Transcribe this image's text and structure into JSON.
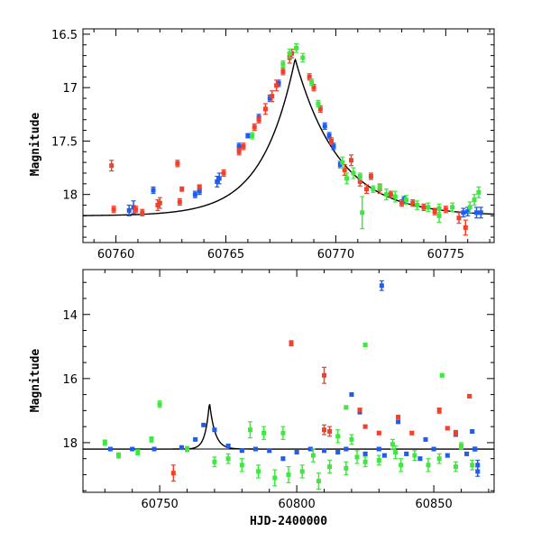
{
  "colors": {
    "blue": "#1f5cf0",
    "red": "#f2402a",
    "green": "#3ee83e",
    "axis": "#000000"
  },
  "chart_data": [
    {
      "type": "scatter",
      "title": "",
      "xlabel": "",
      "ylabel": "Magnitude",
      "xlim": [
        60758.5,
        60777.2
      ],
      "ylim": [
        18.45,
        16.45
      ],
      "y_inverted": true,
      "x_major_ticks": [
        60760,
        60765,
        60770,
        60775
      ],
      "x_tick_labels": [
        "60760",
        "60765",
        "60770",
        "60775"
      ],
      "y_major_ticks": [
        16.5,
        17,
        17.5,
        18
      ],
      "y_tick_labels": [
        "16.5",
        "17",
        "17.5",
        "18"
      ],
      "grid": false,
      "model_curve": {
        "t0": 60768.15,
        "peak": 16.73,
        "base": 18.2,
        "tau_rise": 1.5,
        "tau_fall": 2.0,
        "shape": "exponential-cusp"
      },
      "series": [
        {
          "color": "blue",
          "points": [
            [
              60760.6,
              18.15,
              0.05
            ],
            [
              60760.8,
              18.12,
              0.06
            ],
            [
              60761.7,
              17.96,
              0.03
            ],
            [
              60763.6,
              18.0,
              0.03
            ],
            [
              60763.8,
              17.97,
              0.03
            ],
            [
              60764.6,
              17.88,
              0.05
            ],
            [
              60764.7,
              17.85,
              0.05
            ],
            [
              60765.6,
              17.55,
              0.03
            ],
            [
              60766.0,
              17.45,
              0.02
            ],
            [
              60766.5,
              17.28,
              0.03
            ],
            [
              60767.0,
              17.1,
              0.03
            ],
            [
              60767.4,
              16.96,
              0.03
            ],
            [
              60769.5,
              17.36,
              0.03
            ],
            [
              60769.7,
              17.45,
              0.03
            ],
            [
              60769.9,
              17.55,
              0.03
            ],
            [
              60770.2,
              17.72,
              0.03
            ],
            [
              60773.1,
              18.05,
              0.03
            ],
            [
              60775.8,
              18.17,
              0.04
            ],
            [
              60776.0,
              18.16,
              0.04
            ],
            [
              60776.4,
              18.17,
              0.05
            ],
            [
              60776.6,
              18.17,
              0.05
            ]
          ]
        },
        {
          "color": "red",
          "points": [
            [
              60759.8,
              17.73,
              0.05
            ],
            [
              60759.9,
              18.14,
              0.03
            ],
            [
              60760.9,
              18.14,
              0.03
            ],
            [
              60761.2,
              18.17,
              0.03
            ],
            [
              60761.9,
              18.1,
              0.05
            ],
            [
              60762.0,
              18.08,
              0.05
            ],
            [
              60762.8,
              17.71,
              0.03
            ],
            [
              60762.9,
              18.07,
              0.03
            ],
            [
              60763.0,
              17.95,
              0.02
            ],
            [
              60763.8,
              17.93,
              0.02
            ],
            [
              60764.9,
              17.8,
              0.03
            ],
            [
              60765.6,
              17.6,
              0.03
            ],
            [
              60765.8,
              17.55,
              0.03
            ],
            [
              60766.3,
              17.37,
              0.03
            ],
            [
              60766.5,
              17.3,
              0.03
            ],
            [
              60766.8,
              17.2,
              0.05
            ],
            [
              60767.1,
              17.08,
              0.05
            ],
            [
              60767.3,
              16.98,
              0.05
            ],
            [
              60767.6,
              16.85,
              0.03
            ],
            [
              60767.9,
              16.72,
              0.05
            ],
            [
              60768.0,
              16.68,
              0.04
            ],
            [
              60768.8,
              16.9,
              0.03
            ],
            [
              60769.0,
              17.0,
              0.03
            ],
            [
              60769.3,
              17.2,
              0.03
            ],
            [
              60769.8,
              17.5,
              0.03
            ],
            [
              60770.4,
              17.77,
              0.05
            ],
            [
              60770.7,
              17.68,
              0.05
            ],
            [
              60771.1,
              17.88,
              0.04
            ],
            [
              60771.4,
              17.95,
              0.04
            ],
            [
              60771.6,
              17.83,
              0.03
            ],
            [
              60772.0,
              17.95,
              0.04
            ],
            [
              60772.5,
              18.0,
              0.03
            ],
            [
              60773.0,
              18.08,
              0.03
            ],
            [
              60773.5,
              18.08,
              0.03
            ],
            [
              60774.0,
              18.12,
              0.03
            ],
            [
              60774.5,
              18.16,
              0.03
            ],
            [
              60775.0,
              18.14,
              0.03
            ],
            [
              60775.6,
              18.22,
              0.05
            ],
            [
              60775.9,
              18.31,
              0.07
            ]
          ]
        },
        {
          "color": "green",
          "points": [
            [
              60766.2,
              17.45,
              0.03
            ],
            [
              60767.6,
              16.78,
              0.03
            ],
            [
              60767.9,
              16.68,
              0.04
            ],
            [
              60768.2,
              16.63,
              0.04
            ],
            [
              60768.5,
              16.72,
              0.04
            ],
            [
              60768.9,
              16.95,
              0.03
            ],
            [
              60769.2,
              17.15,
              0.03
            ],
            [
              60770.3,
              17.7,
              0.05
            ],
            [
              60770.5,
              17.85,
              0.05
            ],
            [
              60770.8,
              17.8,
              0.05
            ],
            [
              60771.1,
              17.83,
              0.03
            ],
            [
              60771.7,
              17.95,
              0.03
            ],
            [
              60772.0,
              17.93,
              0.03
            ],
            [
              60772.3,
              18.0,
              0.05
            ],
            [
              60772.7,
              18.02,
              0.05
            ],
            [
              60773.2,
              18.05,
              0.04
            ],
            [
              60773.7,
              18.1,
              0.04
            ],
            [
              60774.2,
              18.12,
              0.04
            ],
            [
              60774.7,
              18.13,
              0.04
            ],
            [
              60775.3,
              18.12,
              0.04
            ],
            [
              60776.1,
              18.12,
              0.05
            ],
            [
              60776.3,
              18.05,
              0.05
            ],
            [
              60776.5,
              17.98,
              0.05
            ],
            [
              60771.2,
              18.17,
              0.15
            ],
            [
              60774.7,
              18.2,
              0.06
            ]
          ]
        }
      ]
    },
    {
      "type": "scatter",
      "title": "",
      "xlabel": "HJD-2400000",
      "ylabel": "Magnitude",
      "xlim": [
        60722,
        60872
      ],
      "ylim": [
        19.55,
        12.6
      ],
      "y_inverted": true,
      "x_major_ticks": [
        60750,
        60800,
        60850
      ],
      "x_tick_labels": [
        "60750",
        "60800",
        "60850"
      ],
      "y_major_ticks": [
        14,
        16,
        18
      ],
      "y_tick_labels": [
        "14",
        "16",
        "18"
      ],
      "grid": false,
      "baseline": 18.2,
      "model_curve": {
        "t0": 60768.15,
        "peak": 16.73,
        "base": 18.2,
        "tau_rise": 1.5,
        "tau_fall": 2.0,
        "shape": "exponential-cusp"
      },
      "series": [
        {
          "color": "blue",
          "points": [
            [
              60831,
              13.1,
              0.15
            ],
            [
              60820,
              16.5,
              0.05
            ],
            [
              60823,
              17.05,
              0.05
            ],
            [
              60837,
              17.35,
              0.05
            ],
            [
              60847,
              17.9,
              0.05
            ],
            [
              60858,
              17.75,
              0.05
            ],
            [
              60864,
              17.65,
              0.05
            ],
            [
              60866,
              18.7,
              0.15
            ],
            [
              60866,
              18.9,
              0.15
            ],
            [
              60845,
              18.5,
              0.05
            ],
            [
              60832,
              18.4,
              0.05
            ],
            [
              60815,
              18.3,
              0.05
            ],
            [
              60795,
              18.5,
              0.05
            ],
            [
              60790,
              18.25,
              0.05
            ],
            [
              60800,
              18.3,
              0.05
            ],
            [
              60810,
              18.25,
              0.05
            ],
            [
              60825,
              18.35,
              0.05
            ],
            [
              60840,
              18.35,
              0.05
            ],
            [
              60855,
              18.4,
              0.05
            ],
            [
              60862,
              18.35,
              0.05
            ],
            [
              60865,
              18.2,
              0.06
            ],
            [
              60732,
              18.2,
              0.03
            ],
            [
              60740,
              18.2,
              0.03
            ],
            [
              60748,
              18.2,
              0.03
            ],
            [
              60758,
              18.15,
              0.03
            ],
            [
              60763,
              17.9,
              0.03
            ],
            [
              60766,
              17.45,
              0.03
            ],
            [
              60770,
              17.6,
              0.03
            ],
            [
              60775,
              18.1,
              0.03
            ],
            [
              60780,
              18.25,
              0.03
            ],
            [
              60785,
              18.2,
              0.05
            ],
            [
              60805,
              18.2,
              0.05
            ],
            [
              60818,
              18.2,
              0.05
            ],
            [
              60830,
              18.2,
              0.05
            ],
            [
              60850,
              18.2,
              0.05
            ]
          ]
        },
        {
          "color": "red",
          "points": [
            [
              60798,
              14.9,
              0.08
            ],
            [
              60810,
              15.9,
              0.25
            ],
            [
              60823,
              16.98,
              0.05
            ],
            [
              60837,
              17.2,
              0.05
            ],
            [
              60852,
              17.0,
              0.08
            ],
            [
              60855,
              17.55,
              0.05
            ],
            [
              60858,
              17.7,
              0.08
            ],
            [
              60863,
              16.55,
              0.05
            ],
            [
              60755,
              18.95,
              0.25
            ],
            [
              60825,
              17.5,
              0.05
            ],
            [
              60842,
              17.7,
              0.05
            ],
            [
              60810,
              17.6,
              0.15
            ],
            [
              60812,
              17.65,
              0.15
            ],
            [
              60830,
              17.7,
              0.05
            ]
          ]
        },
        {
          "color": "green",
          "points": [
            [
              60825,
              14.95,
              0.05
            ],
            [
              60853,
              15.9,
              0.05
            ],
            [
              60818,
              16.9,
              0.05
            ],
            [
              60750,
              16.8,
              0.1
            ],
            [
              60783,
              17.6,
              0.25
            ],
            [
              60788,
              17.7,
              0.2
            ],
            [
              60795,
              17.7,
              0.2
            ],
            [
              60815,
              17.8,
              0.2
            ],
            [
              60820,
              17.9,
              0.15
            ],
            [
              60835,
              18.05,
              0.15
            ],
            [
              60860,
              18.1,
              0.1
            ],
            [
              60770,
              18.6,
              0.15
            ],
            [
              60775,
              18.5,
              0.15
            ],
            [
              60780,
              18.7,
              0.2
            ],
            [
              60786,
              18.9,
              0.2
            ],
            [
              60792,
              19.1,
              0.25
            ],
            [
              60797,
              19.0,
              0.25
            ],
            [
              60802,
              18.9,
              0.2
            ],
            [
              60808,
              19.2,
              0.25
            ],
            [
              60812,
              18.75,
              0.2
            ],
            [
              60818,
              18.8,
              0.2
            ],
            [
              60825,
              18.6,
              0.15
            ],
            [
              60830,
              18.55,
              0.15
            ],
            [
              60838,
              18.7,
              0.2
            ],
            [
              60843,
              18.4,
              0.15
            ],
            [
              60848,
              18.7,
              0.2
            ],
            [
              60852,
              18.5,
              0.15
            ],
            [
              60858,
              18.75,
              0.15
            ],
            [
              60864,
              18.7,
              0.15
            ],
            [
              60730,
              18.0,
              0.08
            ],
            [
              60735,
              18.4,
              0.08
            ],
            [
              60742,
              18.3,
              0.08
            ],
            [
              60747,
              17.9,
              0.08
            ],
            [
              60760,
              18.2,
              0.08
            ],
            [
              60806,
              18.4,
              0.2
            ],
            [
              60822,
              18.45,
              0.2
            ],
            [
              60836,
              18.3,
              0.2
            ]
          ]
        }
      ]
    }
  ]
}
